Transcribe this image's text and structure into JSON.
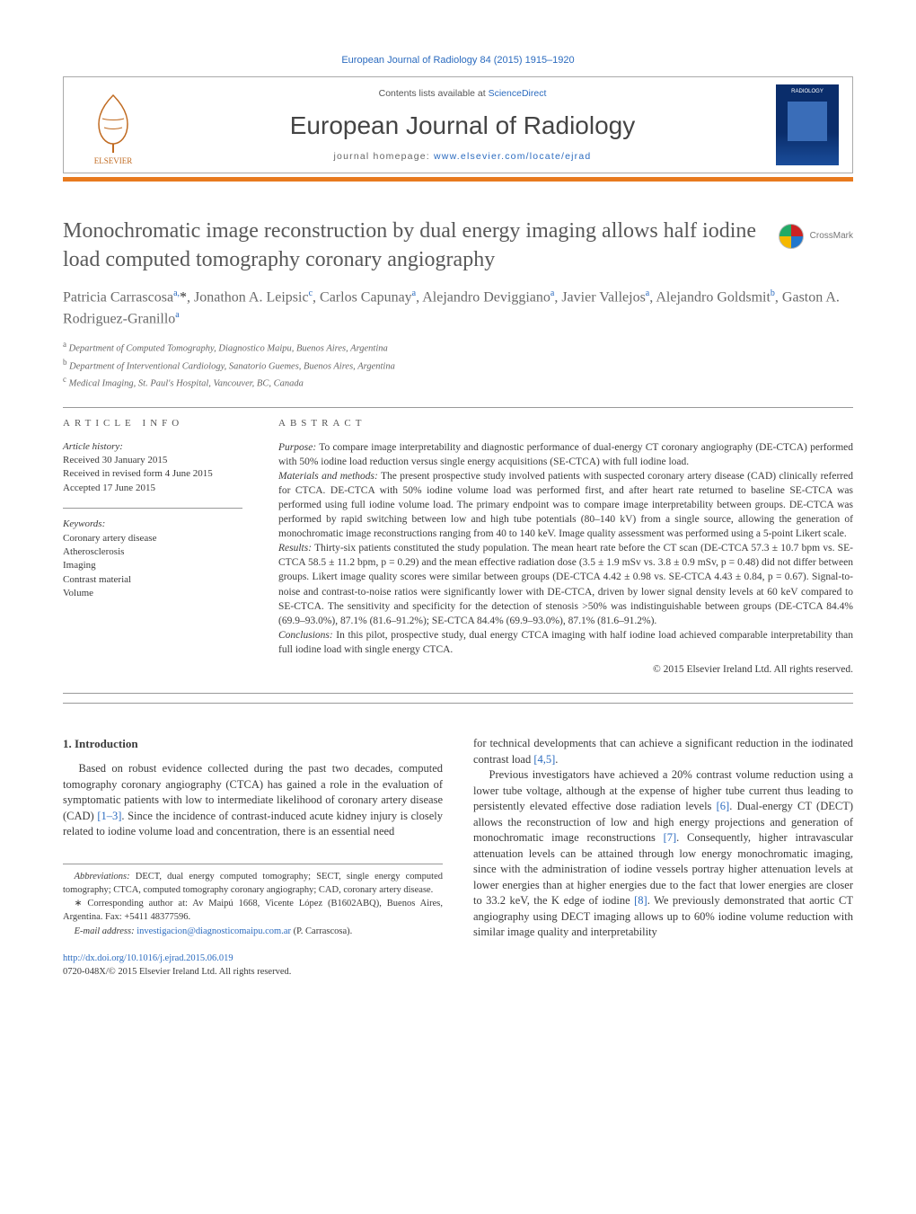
{
  "running_head": "European Journal of Radiology 84 (2015) 1915–1920",
  "masthead": {
    "contents_prefix": "Contents lists available at ",
    "contents_link": "ScienceDirect",
    "journal": "European Journal of Radiology",
    "homepage_prefix": "journal homepage: ",
    "homepage_link": "www.elsevier.com/locate/ejrad",
    "cover_label": "RADIOLOGY"
  },
  "title": "Monochromatic image reconstruction by dual energy imaging allows half iodine load computed tomography coronary angiography",
  "crossmark": "CrossMark",
  "authors_html": "Patricia Carrascosa<sup>a,</sup><span class='ast'>*</span>, Jonathon A. Leipsic<sup>c</sup>, Carlos Capunay<sup>a</sup>, Alejandro Deviggiano<sup>a</sup>, Javier Vallejos<sup>a</sup>, Alejandro Goldsmit<sup>b</sup>, Gaston A. Rodriguez-Granillo<sup>a</sup>",
  "affiliations": [
    {
      "sup": "a",
      "text": "Department of Computed Tomography, Diagnostico Maipu, Buenos Aires, Argentina"
    },
    {
      "sup": "b",
      "text": "Department of Interventional Cardiology, Sanatorio Guemes, Buenos Aires, Argentina"
    },
    {
      "sup": "c",
      "text": "Medical Imaging, St. Paul's Hospital, Vancouver, BC, Canada"
    }
  ],
  "info": {
    "head": "article info",
    "history_label": "Article history:",
    "history": [
      "Received 30 January 2015",
      "Received in revised form 4 June 2015",
      "Accepted 17 June 2015"
    ],
    "keywords_label": "Keywords:",
    "keywords": [
      "Coronary artery disease",
      "Atherosclerosis",
      "Imaging",
      "Contrast material",
      "Volume"
    ]
  },
  "abstract": {
    "head": "abstract",
    "purpose_label": "Purpose:",
    "purpose": " To compare image interpretability and diagnostic performance of dual-energy CT coronary angiography (DE-CTCA) performed with 50% iodine load reduction versus single energy acquisitions (SE-CTCA) with full iodine load.",
    "methods_label": "Materials and methods:",
    "methods": " The present prospective study involved patients with suspected coronary artery disease (CAD) clinically referred for CTCA. DE-CTCA with 50% iodine volume load was performed first, and after heart rate returned to baseline SE-CTCA was performed using full iodine volume load. The primary endpoint was to compare image interpretability between groups. DE-CTCA was performed by rapid switching between low and high tube potentials (80–140 kV) from a single source, allowing the generation of monochromatic image reconstructions ranging from 40 to 140 keV. Image quality assessment was performed using a 5-point Likert scale.",
    "results_label": "Results:",
    "results": " Thirty-six patients constituted the study population. The mean heart rate before the CT scan (DE-CTCA 57.3 ± 10.7 bpm vs. SE-CTCA 58.5 ± 11.2 bpm, p = 0.29) and the mean effective radiation dose (3.5 ± 1.9 mSv vs. 3.8 ± 0.9 mSv, p = 0.48) did not differ between groups. Likert image quality scores were similar between groups (DE-CTCA 4.42 ± 0.98 vs. SE-CTCA 4.43 ± 0.84, p = 0.67). Signal-to-noise and contrast-to-noise ratios were significantly lower with DE-CTCA, driven by lower signal density levels at 60 keV compared to SE-CTCA. The sensitivity and specificity for the detection of stenosis >50% was indistinguishable between groups (DE-CTCA 84.4% (69.9–93.0%), 87.1% (81.6–91.2%); SE-CTCA 84.4% (69.9–93.0%), 87.1% (81.6–91.2%).",
    "conclusions_label": "Conclusions:",
    "conclusions": " In this pilot, prospective study, dual energy CTCA imaging with half iodine load achieved comparable interpretability than full iodine load with single energy CTCA.",
    "copyright": "© 2015 Elsevier Ireland Ltd. All rights reserved."
  },
  "body": {
    "sec1_head": "1.  Introduction",
    "col1_p1_a": "Based on robust evidence collected during the past two decades, computed tomography coronary angiography (CTCA) has gained a role in the evaluation of symptomatic patients with low to intermediate likelihood of coronary artery disease (CAD) ",
    "col1_p1_ref1": "[1–3]",
    "col1_p1_b": ". Since the incidence of contrast-induced acute kidney injury is closely related to iodine volume load and concentration, there is an essential need",
    "col2_p1_a": "for technical developments that can achieve a significant reduction in the iodinated contrast load ",
    "col2_p1_ref1": "[4,5]",
    "col2_p1_b": ".",
    "col2_p2_a": "Previous investigators have achieved a 20% contrast volume reduction using a lower tube voltage, although at the expense of higher tube current thus leading to persistently elevated effective dose radiation levels ",
    "col2_p2_ref1": "[6]",
    "col2_p2_b": ". Dual-energy CT (DECT) allows the reconstruction of low and high energy projections and generation of monochromatic image reconstructions ",
    "col2_p2_ref2": "[7]",
    "col2_p2_c": ". Consequently, higher intravascular attenuation levels can be attained through low energy monochromatic imaging, since with the administration of iodine vessels portray higher attenuation levels at lower energies than at higher energies due to the fact that lower energies are closer to 33.2 keV, the K edge of iodine ",
    "col2_p2_ref3": "[8]",
    "col2_p2_d": ". We previously demonstrated that aortic CT angiography using DECT imaging allows up to 60% iodine volume reduction with similar image quality and interpretability"
  },
  "footnotes": {
    "abbrev_label": "Abbreviations:",
    "abbrev": " DECT, dual energy computed tomography; SECT, single energy computed tomography; CTCA, computed tomography coronary angiography; CAD, coronary artery disease.",
    "corr_marker": "∗",
    "corr": " Corresponding author at: Av Maipú 1668, Vicente López (B1602ABQ), Buenos Aires, Argentina. Fax: +5411 48377596.",
    "email_label": "E-mail address: ",
    "email": "investigacion@diagnosticomaipu.com.ar",
    "email_tail": " (P. Carrascosa)."
  },
  "doi": {
    "link": "http://dx.doi.org/10.1016/j.ejrad.2015.06.019",
    "issn_line": "0720-048X/© 2015 Elsevier Ireland Ltd. All rights reserved."
  },
  "colors": {
    "link": "#2b6bbf",
    "orange": "#e87a1e",
    "text": "#3a3a3a"
  }
}
